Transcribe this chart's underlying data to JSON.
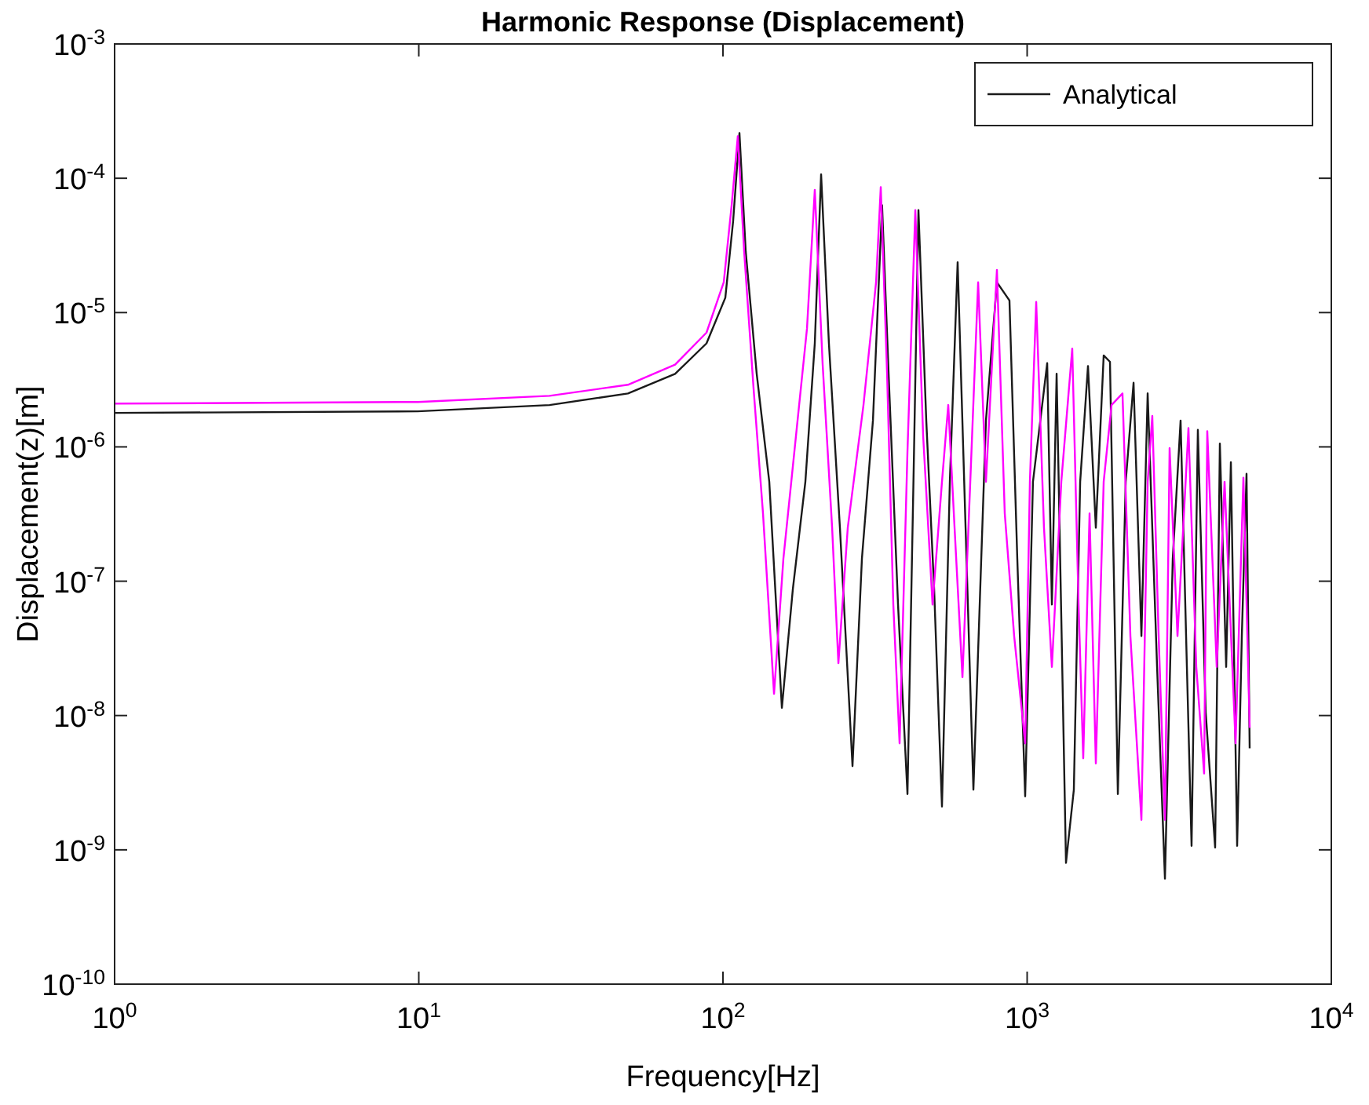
{
  "chart_data": {
    "type": "line",
    "title": "Harmonic Response (Displacement)",
    "xlabel": "Frequency[Hz]",
    "ylabel": "Displacement(z)[m]",
    "log": "xy",
    "grid": false,
    "legend": "top right",
    "line_style": "solid",
    "xlim": [
      1,
      10000
    ],
    "ylim": [
      1e-10,
      0.001
    ],
    "xticks": [
      {
        "value": 1,
        "label": "10$^{0}$"
      },
      {
        "value": 10,
        "label": "10$^{1}$"
      },
      {
        "value": 100,
        "label": "10$^{2}$"
      },
      {
        "value": 1000,
        "label": "10$^{3}$"
      },
      {
        "value": 10000,
        "label": "10$^{4}$"
      }
    ],
    "yticks": [
      {
        "value": 1e-10,
        "label": "10$^{-10}$"
      },
      {
        "value": 1e-09,
        "label": "10$^{-9}$"
      },
      {
        "value": 1e-08,
        "label": "10$^{-8}$"
      },
      {
        "value": 1e-07,
        "label": "10$^{-7}$"
      },
      {
        "value": 1e-06,
        "label": "10$^{-6}$"
      },
      {
        "value": 1e-05,
        "label": "10$^{-5}$"
      },
      {
        "value": 0.0001,
        "label": "10$^{-4}$"
      },
      {
        "value": 0.001,
        "label": "10$^{-3}$"
      }
    ],
    "series": [
      {
        "name": "Analytical",
        "color": "#1a1a1a",
        "x": [
          1,
          9.92,
          26.9,
          48.7,
          69.6,
          88.3,
          101.8,
          108,
          113.3,
          118.8,
          129.1,
          142,
          156.2,
          169.7,
          186.6,
          200.4,
          210.2,
          223,
          242.4,
          266.6,
          286.3,
          311.2,
          333.5,
          350.4,
          376.3,
          404.2,
          423.8,
          439.2,
          466,
          494.6,
          524.8,
          557,
          590.9,
          627.5,
          665.8,
          732.1,
          795.5,
          874.7,
          928.2,
          985.2,
          1045,
          1164,
          1206,
          1250,
          1342,
          1424,
          1494,
          1585,
          1682,
          1785,
          1872,
          1987,
          2109,
          2238,
          2375,
          2490,
          2674,
          2838,
          3011,
          3195,
          3351,
          3472,
          3641,
          3864,
          4150,
          4301,
          4511,
          4675,
          4902,
          5079,
          5263,
          5390
        ],
        "values": [
          1.79e-06,
          1.84e-06,
          2.05e-06,
          2.5e-06,
          3.5e-06,
          5.9e-06,
          1.29e-05,
          4.8e-05,
          0.000217,
          2.85e-05,
          3.5e-06,
          5.5e-07,
          1.14e-08,
          8.7e-08,
          5.5e-07,
          5.9e-06,
          0.000107,
          5.9e-06,
          2.5e-07,
          4.2e-09,
          1.47e-07,
          1.57e-06,
          6.3e-05,
          3.5e-06,
          6.7e-08,
          2.6e-09,
          7.1e-07,
          5.8e-05,
          1.57e-06,
          8.7e-08,
          2.1e-09,
          5.5e-07,
          2.37e-05,
          2.5e-07,
          2.8e-09,
          1.57e-06,
          1.68e-05,
          1.23e-05,
          1.47e-07,
          2.5e-09,
          5.5e-07,
          4.2e-06,
          6.7e-08,
          3.5e-06,
          8e-10,
          2.8e-09,
          5.5e-07,
          4e-06,
          2.5e-07,
          4.8e-06,
          4.3e-06,
          2.6e-09,
          5.5e-07,
          3e-06,
          3.9e-08,
          2.5e-06,
          2.3e-08,
          6.1e-10,
          1.47e-07,
          1.57e-06,
          2.3e-08,
          1.07e-09,
          1.34e-06,
          1.05e-08,
          1.04e-09,
          1.06e-06,
          2.3e-08,
          7.7e-07,
          1.07e-09,
          3.9e-08,
          6.3e-07,
          5.7e-09
        ]
      },
      {
        "color": "#ff00ff",
        "x": [
          1,
          9.92,
          26.9,
          48.7,
          69.6,
          88.3,
          100.6,
          106.8,
          111.9,
          117.4,
          126.1,
          135.4,
          147.2,
          158,
          173.8,
          188.9,
          200.4,
          212.7,
          228.5,
          239.6,
          257.2,
          289.7,
          318.7,
          330.2,
          346.4,
          363.1,
          380.8,
          404.2,
          428.9,
          455.1,
          488.7,
          524.8,
          550.4,
          577.3,
          612.8,
          650.2,
          690.1,
          732.1,
          795.5,
          844.1,
          906.5,
          985.2,
          1021,
          1071,
          1136,
          1206,
          1295,
          1407,
          1476,
          1529,
          1604,
          1682,
          1785,
          1894,
          2058,
          2185,
          2375,
          2490,
          2579,
          2706,
          2838,
          2940,
          3121,
          3391,
          3598,
          3818,
          3910,
          4200,
          4457,
          4844,
          5140,
          5390
        ],
        "values": [
          2.1e-06,
          2.16e-06,
          2.4e-06,
          2.9e-06,
          4.1e-06,
          7.1e-06,
          1.68e-05,
          6.3e-05,
          0.000206,
          2.85e-05,
          2.7e-06,
          3.2e-07,
          1.45e-08,
          1.47e-07,
          1.21e-06,
          7.6e-06,
          8.2e-05,
          4.1e-06,
          2.5e-07,
          2.45e-08,
          2.5e-07,
          2.05e-06,
          1.68e-05,
          8.6e-05,
          3.5e-06,
          6.7e-08,
          6.2e-09,
          9.3e-07,
          5.8e-05,
          1.21e-06,
          6.7e-08,
          5.5e-07,
          2.05e-06,
          2.5e-07,
          1.93e-08,
          5.5e-07,
          1.68e-05,
          5.5e-07,
          2.08e-05,
          3.2e-07,
          3.9e-08,
          6.2e-09,
          5.5e-07,
          1.2e-05,
          2.5e-07,
          2.3e-08,
          5.5e-07,
          5.4e-06,
          6.7e-08,
          4.8e-09,
          3.2e-07,
          4.4e-09,
          5.5e-07,
          2.05e-06,
          2.5e-06,
          3.9e-08,
          1.67e-09,
          5.5e-07,
          1.7e-06,
          3.9e-08,
          1.67e-09,
          9.8e-07,
          3.9e-08,
          1.38e-06,
          2.3e-08,
          3.7e-09,
          1.31e-06,
          2.3e-08,
          5.5e-07,
          6.2e-09,
          5.9e-07,
          8.1e-09
        ]
      }
    ]
  }
}
